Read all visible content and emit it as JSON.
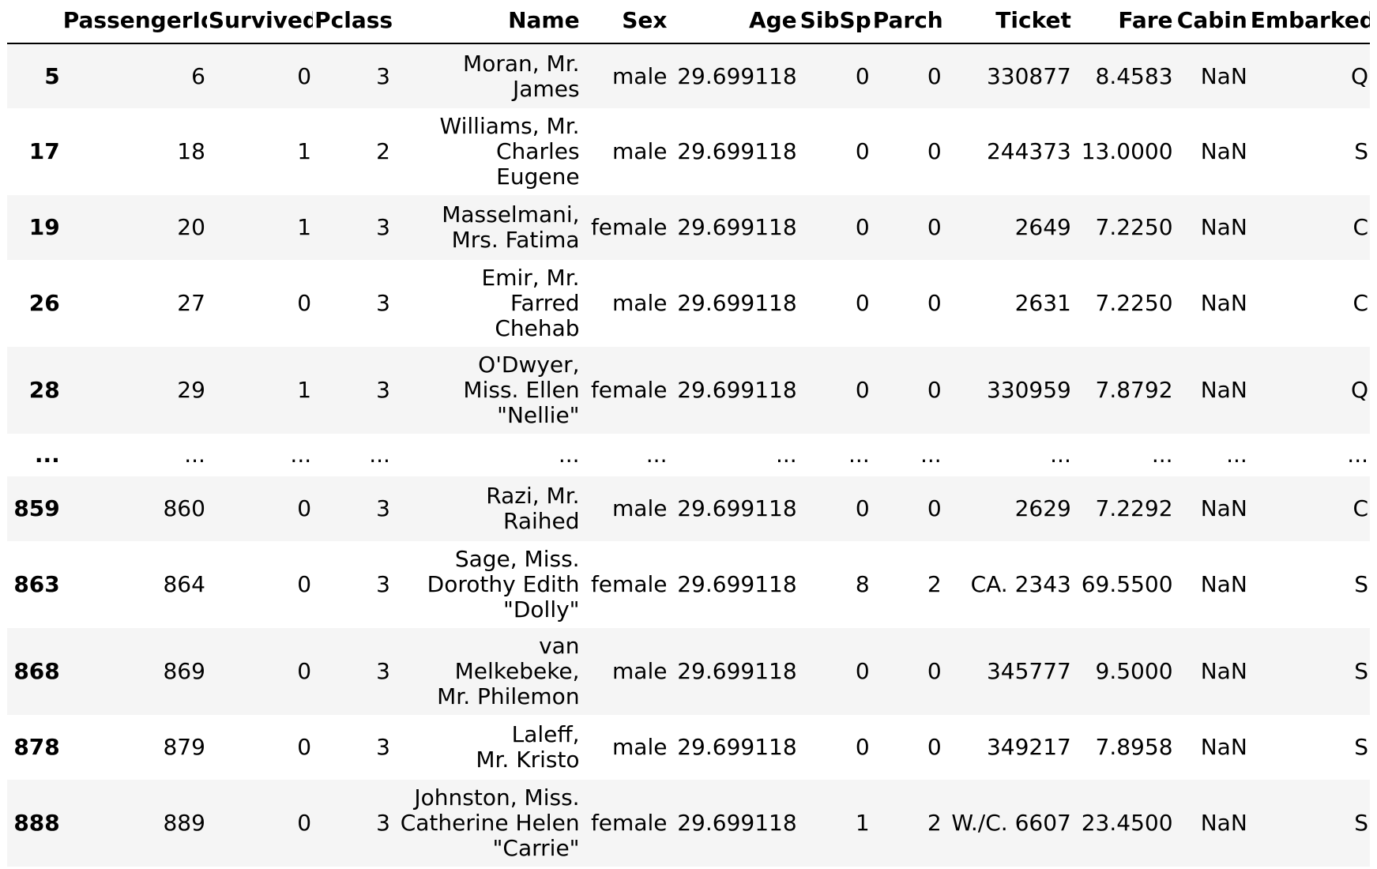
{
  "columns": [
    "",
    "PassengerId",
    "Survived",
    "Pclass",
    "Name",
    "Sex",
    "Age",
    "SibSp",
    "Parch",
    "Ticket",
    "Fare",
    "Cabin",
    "Embarked"
  ],
  "rows": [
    {
      "index": "5",
      "cells": [
        "6",
        "0",
        "3",
        "Moran, Mr. James",
        "male",
        "29.699118",
        "0",
        "0",
        "330877",
        "8.4583",
        "NaN",
        "Q"
      ],
      "name_lines": [
        "Moran, Mr.",
        "James"
      ]
    },
    {
      "index": "17",
      "cells": [
        "18",
        "1",
        "2",
        "Williams, Mr. Charles Eugene",
        "male",
        "29.699118",
        "0",
        "0",
        "244373",
        "13.0000",
        "NaN",
        "S"
      ],
      "name_lines": [
        "Williams, Mr.",
        "Charles",
        "Eugene"
      ]
    },
    {
      "index": "19",
      "cells": [
        "20",
        "1",
        "3",
        "Masselmani, Mrs. Fatima",
        "female",
        "29.699118",
        "0",
        "0",
        "2649",
        "7.2250",
        "NaN",
        "C"
      ],
      "name_lines": [
        "Masselmani,",
        "Mrs. Fatima"
      ]
    },
    {
      "index": "26",
      "cells": [
        "27",
        "0",
        "3",
        "Emir, Mr. Farred Chehab",
        "male",
        "29.699118",
        "0",
        "0",
        "2631",
        "7.2250",
        "NaN",
        "C"
      ],
      "name_lines": [
        "Emir, Mr.",
        "Farred",
        "Chehab"
      ]
    },
    {
      "index": "28",
      "cells": [
        "29",
        "1",
        "3",
        "O'Dwyer, Miss. Ellen \"Nellie\"",
        "female",
        "29.699118",
        "0",
        "0",
        "330959",
        "7.8792",
        "NaN",
        "Q"
      ],
      "name_lines": [
        "O'Dwyer,",
        "Miss. Ellen",
        "\"Nellie\""
      ]
    },
    {
      "index": "...",
      "cells": [
        "...",
        "...",
        "...",
        "...",
        "...",
        "...",
        "...",
        "...",
        "...",
        "...",
        "...",
        "..."
      ],
      "name_lines": [
        "..."
      ]
    },
    {
      "index": "859",
      "cells": [
        "860",
        "0",
        "3",
        "Razi, Mr. Raihed",
        "male",
        "29.699118",
        "0",
        "0",
        "2629",
        "7.2292",
        "NaN",
        "C"
      ],
      "name_lines": [
        "Razi, Mr.",
        "Raihed"
      ]
    },
    {
      "index": "863",
      "cells": [
        "864",
        "0",
        "3",
        "Sage, Miss. Dorothy Edith \"Dolly\"",
        "female",
        "29.699118",
        "8",
        "2",
        "CA. 2343",
        "69.5500",
        "NaN",
        "S"
      ],
      "name_lines": [
        "Sage, Miss.",
        "Dorothy Edith",
        "\"Dolly\""
      ]
    },
    {
      "index": "868",
      "cells": [
        "869",
        "0",
        "3",
        "van Melkebeke, Mr. Philemon",
        "male",
        "29.699118",
        "0",
        "0",
        "345777",
        "9.5000",
        "NaN",
        "S"
      ],
      "name_lines": [
        "van",
        "Melkebeke,",
        "Mr. Philemon"
      ]
    },
    {
      "index": "878",
      "cells": [
        "879",
        "0",
        "3",
        "Laleff, Mr. Kristo",
        "male",
        "29.699118",
        "0",
        "0",
        "349217",
        "7.8958",
        "NaN",
        "S"
      ],
      "name_lines": [
        "Laleff,",
        "Mr. Kristo"
      ]
    },
    {
      "index": "888",
      "cells": [
        "889",
        "0",
        "3",
        "Johnston, Miss. Catherine Helen \"Carrie\"",
        "female",
        "29.699118",
        "1",
        "2",
        "W./C. 6607",
        "23.4500",
        "NaN",
        "S"
      ],
      "name_lines": [
        "Johnston, Miss.",
        "Catherine Helen",
        "\"Carrie\""
      ]
    }
  ],
  "colors": {
    "stripe": "#f5f5f5",
    "background": "#ffffff",
    "header_rule": "#000000"
  }
}
